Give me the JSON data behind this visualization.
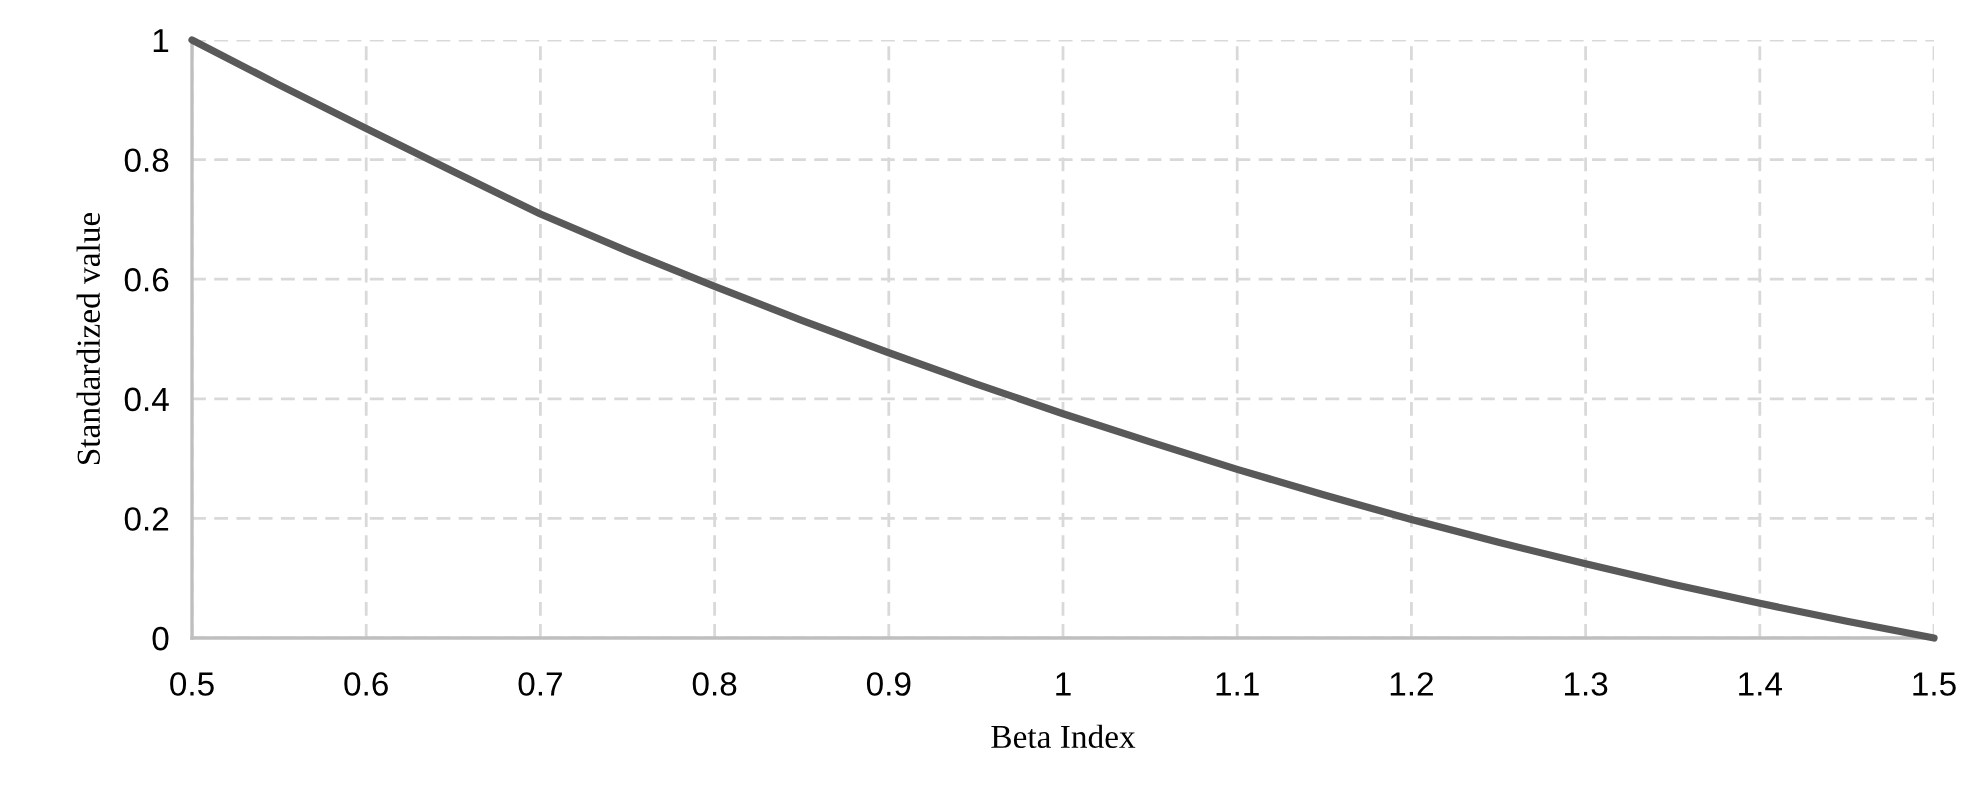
{
  "chart_data": {
    "type": "line",
    "xlabel": "Beta Index",
    "ylabel": "Standardized value",
    "x": [
      0.5,
      0.55,
      0.6,
      0.65,
      0.7,
      0.75,
      0.8,
      0.85,
      0.9,
      0.95,
      1.0,
      1.05,
      1.1,
      1.15,
      1.2,
      1.25,
      1.3,
      1.35,
      1.4,
      1.45,
      1.5
    ],
    "series": [
      {
        "color": "#595959",
        "values": [
          1.0,
          0.925,
          0.852,
          0.78,
          0.709,
          0.647,
          0.588,
          0.531,
          0.477,
          0.425,
          0.375,
          0.328,
          0.282,
          0.239,
          0.198,
          0.16,
          0.124,
          0.09,
          0.058,
          0.028,
          0.0
        ]
      }
    ],
    "xlim": [
      0.5,
      1.5
    ],
    "xticks": [
      0.5,
      0.6,
      0.7,
      0.8,
      0.9,
      1,
      1.1,
      1.2,
      1.3,
      1.4,
      1.5
    ],
    "ylim": [
      0,
      1
    ],
    "yticks": [
      0,
      0.2,
      0.4,
      0.6,
      0.8,
      1
    ],
    "grid": true,
    "legend": false,
    "marker": "none",
    "line_style": "solid"
  }
}
